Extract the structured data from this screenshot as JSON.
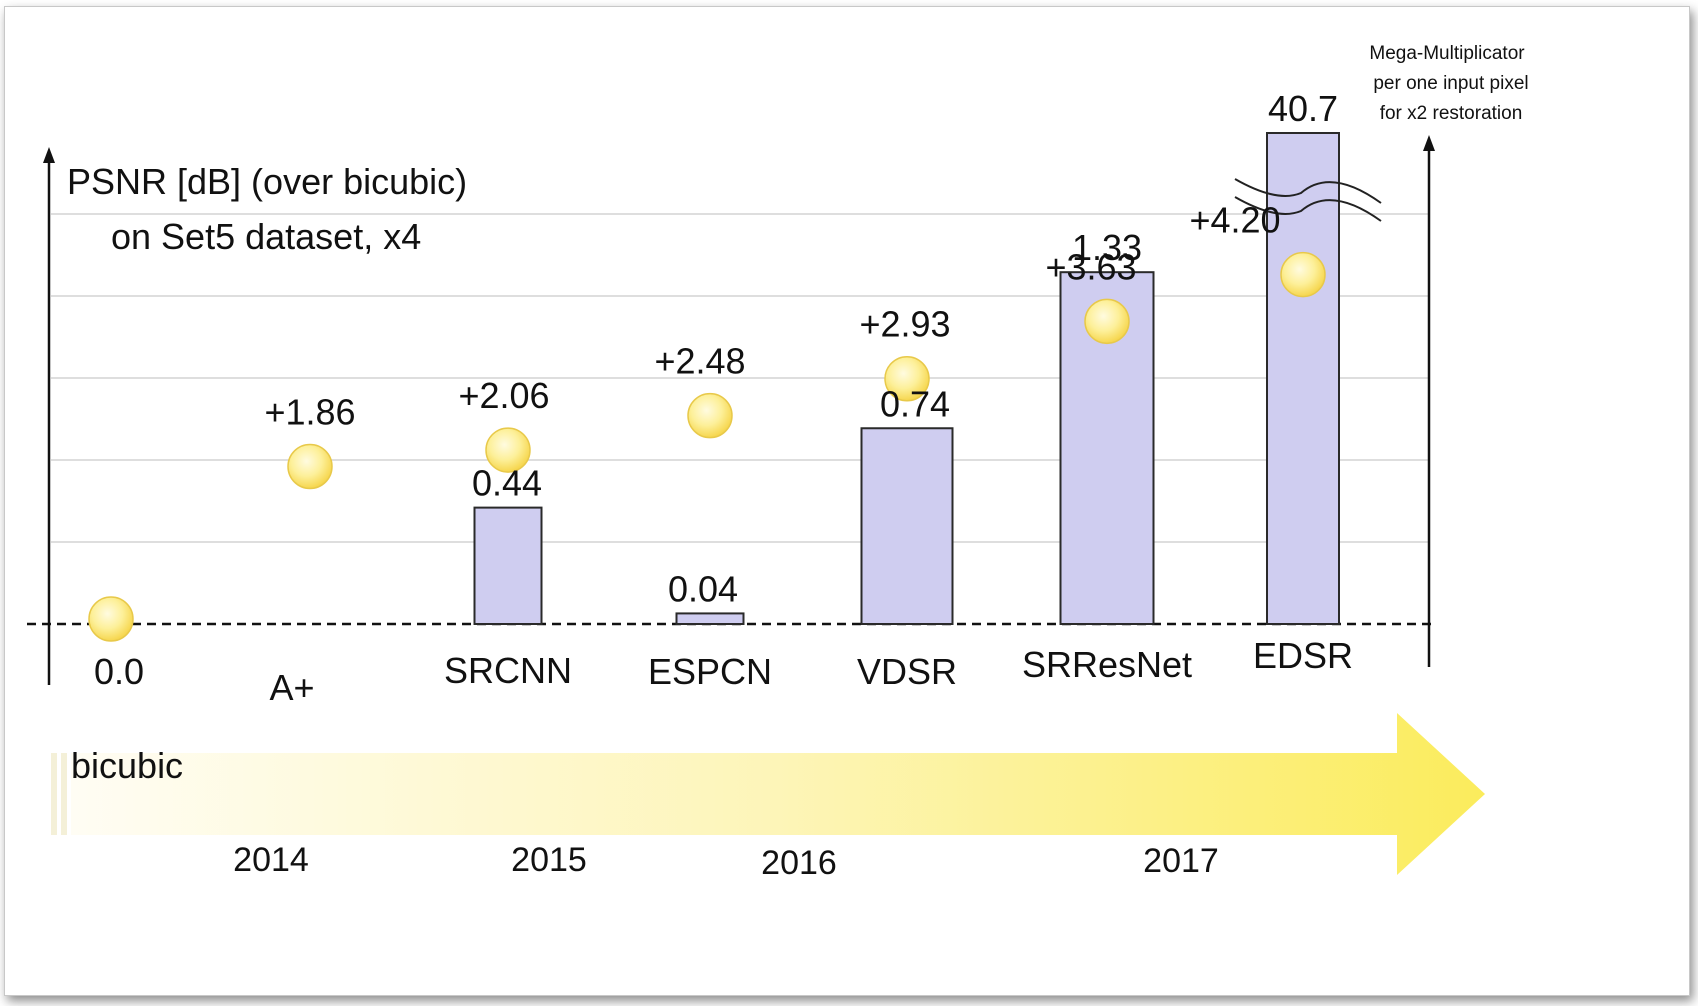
{
  "chart_data": {
    "type": "bar+scatter",
    "title": "PSNR [dB] (over bicubic)",
    "subtitle": "on Set5 dataset, x4",
    "left_axis": {
      "label_line1": "PSNR [dB] (over bicubic)",
      "label_line2": "on Set5 dataset, x4",
      "ylim": [
        0,
        5
      ]
    },
    "right_axis": {
      "label_lines": [
        "Mega-Multiplicator",
        "per one input pixel",
        "for x2 restoration"
      ],
      "ylim": [
        0,
        1.55
      ],
      "axis_break_for": "EDSR"
    },
    "categories": [
      "bicubic",
      "A+",
      "SRCNN",
      "ESPCN",
      "VDSR",
      "SRResNet",
      "EDSR"
    ],
    "category_labels": [
      "0.0",
      "A+",
      "SRCNN",
      "ESPCN",
      "VDSR",
      "SRResNet",
      "EDSR"
    ],
    "psnr_gain": {
      "name": "PSNR gain over bicubic",
      "values": [
        0.0,
        1.86,
        2.06,
        2.48,
        2.93,
        3.63,
        4.2
      ],
      "labels": [
        null,
        "+1.86",
        "+2.06",
        "+2.48",
        "+2.93",
        "+3.63",
        "+4.20"
      ]
    },
    "multiplications": {
      "name": "Mega-Multiplicator per one input pixel for x2 restoration",
      "values": [
        null,
        null,
        0.44,
        0.04,
        0.74,
        1.33,
        40.7
      ],
      "labels": [
        null,
        null,
        "0.44",
        "0.04",
        "0.74",
        "1.33",
        "40.7"
      ]
    },
    "timeline": {
      "start_label": "bicubic",
      "years": [
        "2014",
        "2015",
        "2016",
        "2017"
      ]
    },
    "grid": true,
    "colors": {
      "bar_fill": "#cfcdf0",
      "bar_stroke": "#2a2a2a",
      "dot_fill": "#fde97a",
      "dot_stroke": "#e8c94a",
      "arrow_fill": "#fbec5c"
    }
  }
}
